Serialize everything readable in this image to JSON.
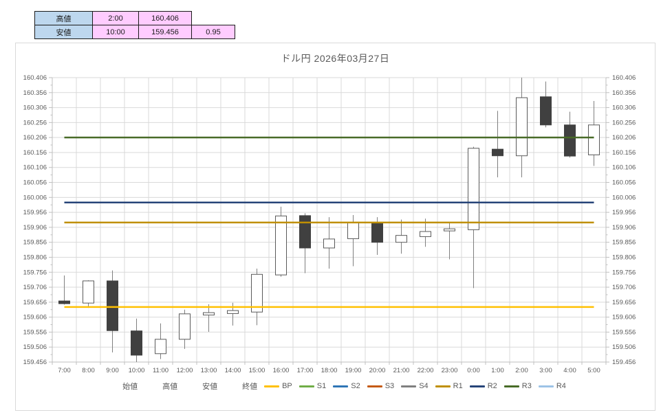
{
  "summary_table": {
    "rows": [
      {
        "label": "高値",
        "time": "2:00",
        "price": "160.406",
        "extra": ""
      },
      {
        "label": "安値",
        "time": "10:00",
        "price": "159.456",
        "extra": "0.95"
      }
    ]
  },
  "chart_data": {
    "type": "candlestick",
    "title": "ドル円  2026年03月27日",
    "xlabel": "",
    "ylabel": "",
    "y_min": 159.456,
    "y_max": 160.406,
    "y_tick_step": 0.05,
    "grid": true,
    "legend_position": "bottom",
    "y_tick_labels": [
      "160.406",
      "160.356",
      "160.306",
      "160.256",
      "160.206",
      "160.156",
      "160.106",
      "160.056",
      "160.006",
      "159.956",
      "159.906",
      "159.856",
      "159.806",
      "159.756",
      "159.706",
      "159.656",
      "159.606",
      "159.556",
      "159.506",
      "159.456"
    ],
    "categories": [
      "7:00",
      "8:00",
      "9:00",
      "10:00",
      "11:00",
      "12:00",
      "13:00",
      "14:00",
      "15:00",
      "16:00",
      "17:00",
      "18:00",
      "19:00",
      "20:00",
      "21:00",
      "22:00",
      "23:00",
      "0:00",
      "1:00",
      "2:00",
      "3:00",
      "4:00",
      "5:00"
    ],
    "series_names": {
      "open": "始値",
      "high": "高値",
      "low": "安値",
      "close": "終値"
    },
    "candles": [
      {
        "time": "7:00",
        "open": 159.66,
        "high": 159.745,
        "low": 159.648,
        "close": 159.651
      },
      {
        "time": "8:00",
        "open": 159.653,
        "high": 159.729,
        "low": 159.637,
        "close": 159.727
      },
      {
        "time": "9:00",
        "open": 159.727,
        "high": 159.762,
        "low": 159.488,
        "close": 159.561
      },
      {
        "time": "10:00",
        "open": 159.56,
        "high": 159.601,
        "low": 159.456,
        "close": 159.479
      },
      {
        "time": "11:00",
        "open": 159.484,
        "high": 159.585,
        "low": 159.466,
        "close": 159.532
      },
      {
        "time": "12:00",
        "open": 159.532,
        "high": 159.631,
        "low": 159.5,
        "close": 159.617
      },
      {
        "time": "13:00",
        "open": 159.613,
        "high": 159.649,
        "low": 159.557,
        "close": 159.621
      },
      {
        "time": "14:00",
        "open": 159.618,
        "high": 159.654,
        "low": 159.578,
        "close": 159.628
      },
      {
        "time": "15:00",
        "open": 159.623,
        "high": 159.768,
        "low": 159.579,
        "close": 159.749
      },
      {
        "time": "16:00",
        "open": 159.747,
        "high": 159.975,
        "low": 159.741,
        "close": 159.944
      },
      {
        "time": "17:00",
        "open": 159.945,
        "high": 159.953,
        "low": 159.753,
        "close": 159.837
      },
      {
        "time": "18:00",
        "open": 159.837,
        "high": 159.94,
        "low": 159.768,
        "close": 159.867
      },
      {
        "time": "19:00",
        "open": 159.868,
        "high": 159.947,
        "low": 159.776,
        "close": 159.921
      },
      {
        "time": "20:00",
        "open": 159.921,
        "high": 159.94,
        "low": 159.814,
        "close": 159.856
      },
      {
        "time": "21:00",
        "open": 159.856,
        "high": 159.932,
        "low": 159.818,
        "close": 159.879
      },
      {
        "time": "22:00",
        "open": 159.875,
        "high": 159.935,
        "low": 159.841,
        "close": 159.892
      },
      {
        "time": "23:00",
        "open": 159.894,
        "high": 159.921,
        "low": 159.799,
        "close": 159.901
      },
      {
        "time": "0:00",
        "open": 159.898,
        "high": 160.175,
        "low": 159.703,
        "close": 160.17
      },
      {
        "time": "1:00",
        "open": 160.167,
        "high": 160.295,
        "low": 160.073,
        "close": 160.145
      },
      {
        "time": "2:00",
        "open": 160.145,
        "high": 160.406,
        "low": 160.073,
        "close": 160.339
      },
      {
        "time": "3:00",
        "open": 160.342,
        "high": 160.393,
        "low": 160.24,
        "close": 160.248
      },
      {
        "time": "4:00",
        "open": 160.248,
        "high": 160.292,
        "low": 160.139,
        "close": 160.144
      },
      {
        "time": "5:00",
        "open": 160.148,
        "high": 160.328,
        "low": 160.111,
        "close": 160.248
      }
    ],
    "pivot_lines": [
      {
        "name": "BP",
        "value": 159.64,
        "color": "#FFC000"
      },
      {
        "name": "R1",
        "value": 159.922,
        "color": "#BF8F00"
      },
      {
        "name": "R2",
        "value": 159.989,
        "color": "#264478"
      },
      {
        "name": "R3",
        "value": 160.206,
        "color": "#486B27"
      }
    ],
    "legend": [
      {
        "label": "始値",
        "type": "none",
        "color": null
      },
      {
        "label": "高値",
        "type": "none",
        "color": null
      },
      {
        "label": "安値",
        "type": "none",
        "color": null
      },
      {
        "label": "終値",
        "type": "none",
        "color": null
      },
      {
        "label": "BP",
        "type": "line",
        "color": "#FFC000"
      },
      {
        "label": "S1",
        "type": "line",
        "color": "#70AD47"
      },
      {
        "label": "S2",
        "type": "line",
        "color": "#2E75B6"
      },
      {
        "label": "S3",
        "type": "line",
        "color": "#C55A11"
      },
      {
        "label": "S4",
        "type": "line",
        "color": "#7F7F7F"
      },
      {
        "label": "R1",
        "type": "line",
        "color": "#BF8F00"
      },
      {
        "label": "R2",
        "type": "line",
        "color": "#264478"
      },
      {
        "label": "R3",
        "type": "line",
        "color": "#486B27"
      },
      {
        "label": "R4",
        "type": "line",
        "color": "#9DC3E6"
      }
    ],
    "colors": {
      "bull_fill": "#FFFFFF",
      "bull_stroke": "#595959",
      "bear_fill": "#404040",
      "bear_stroke": "#404040",
      "wick": "#7F7F7F",
      "grid": "#D9D9D9",
      "axis_line": "#BFBFBF",
      "axis_text": "#595959",
      "title_text": "#595959"
    }
  }
}
